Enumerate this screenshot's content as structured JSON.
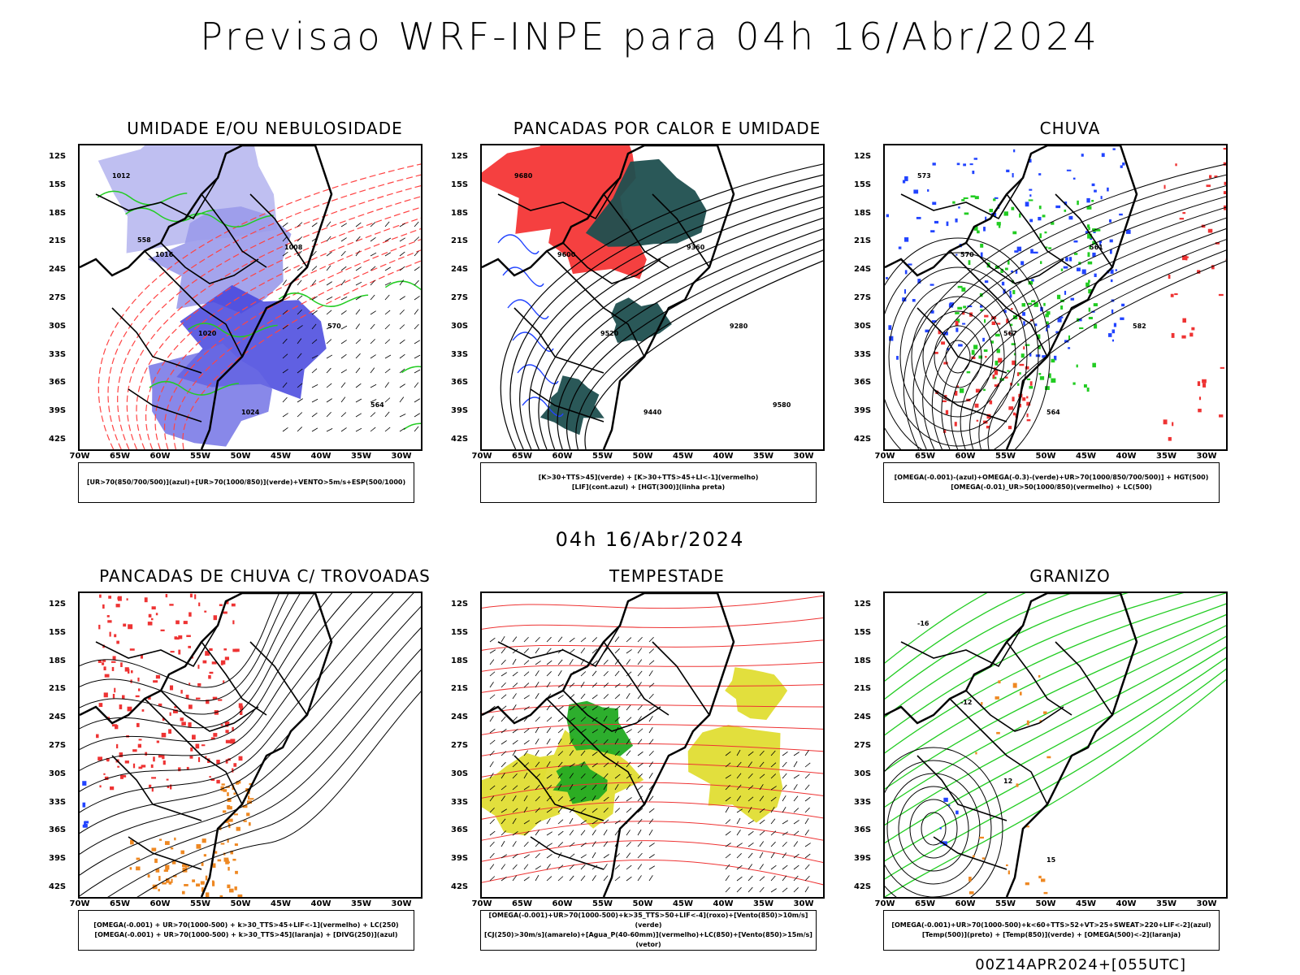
{
  "header": {
    "title": "Previsao WRF-INPE  para 04h 16/Abr/2024",
    "subtitle": "04h 16/Abr/2024",
    "run_stamp": "00Z14APR2024+[055UTC]"
  },
  "axes": {
    "lat_labels": [
      "12S",
      "15S",
      "18S",
      "21S",
      "24S",
      "27S",
      "30S",
      "33S",
      "36S",
      "39S",
      "42S"
    ],
    "lon_labels": [
      "70W",
      "65W",
      "60W",
      "55W",
      "50W",
      "45W",
      "40W",
      "35W",
      "30W"
    ]
  },
  "panels": [
    {
      "title": "UMIDADE E/OU NEBULOSIDADE",
      "legend_lines": [
        "[UR>70(850/700/500)](azul)+[UR>70(1000/850)](verde)+VENTO>5m/s+ESP(500/1000)"
      ],
      "contour_labels": [
        "1012",
        "1016",
        "1020",
        "1024",
        "1008",
        "570",
        "564",
        "558"
      ],
      "style": "umidade"
    },
    {
      "title": "PANCADAS POR CALOR E UMIDADE",
      "legend_lines": [
        "[K>30+TTS>45](verde) + [K>30+TTS>45+LI<-1](vermelho)",
        "[LIF](cont.azul) + [HGT(300)](linha preta)"
      ],
      "contour_labels": [
        "9680",
        "9600",
        "9520",
        "9440",
        "9360",
        "9280",
        "9580"
      ],
      "style": "calor"
    },
    {
      "title": "CHUVA",
      "legend_lines": [
        "[OMEGA(-0.001)-(azul)+OMEGA(-0.3)-(verde)+UR>70(1000/850/700/500)] + HGT(500)",
        "[OMEGA(-0.01)_UR>50(1000/850)(vermelho) + LC(500)"
      ],
      "contour_labels": [
        "573",
        "570",
        "567",
        "564",
        "561",
        "582"
      ],
      "style": "chuva"
    },
    {
      "title": "PANCADAS DE CHUVA C/ TROVOADAS",
      "legend_lines": [
        "[OMEGA(-0.001) + UR>70(1000-500) + k>30_TTS>45+LIF<-1](vermelho) + LC(250)",
        "[OMEGA(-0.001) + UR>70(1000-500) + k>30_TTS>45](laranja) + [DIVG(250)](azul)"
      ],
      "contour_labels": [],
      "style": "trovoadas"
    },
    {
      "title": "TEMPESTADE",
      "legend_lines": [
        "[OMEGA(-0.001)+UR>70(1000-500)+k>35_TTS>50+LIF<-4](roxo)+[Vento(850)>10m/s](verde)",
        "[CJ(250)>30m/s](amarelo)+[Agua_P(40-60mm)](vermelho)+LC(850)+[Vento(850)>15m/s](vetor)"
      ],
      "contour_labels": [],
      "style": "tempestade"
    },
    {
      "title": "GRANIZO",
      "legend_lines": [
        "[OMEGA(-0.001)+UR>70(1000-500)+k<60+TTS>52+VT>25+SWEAT>220+LIF<-2](azul)",
        "[Temp(500)](preto) + [Temp(850)](verde) + [OMEGA(500)<-2](laranja)"
      ],
      "contour_labels": [
        "-16",
        "-12",
        "12",
        "15"
      ],
      "style": "granizo"
    }
  ]
}
